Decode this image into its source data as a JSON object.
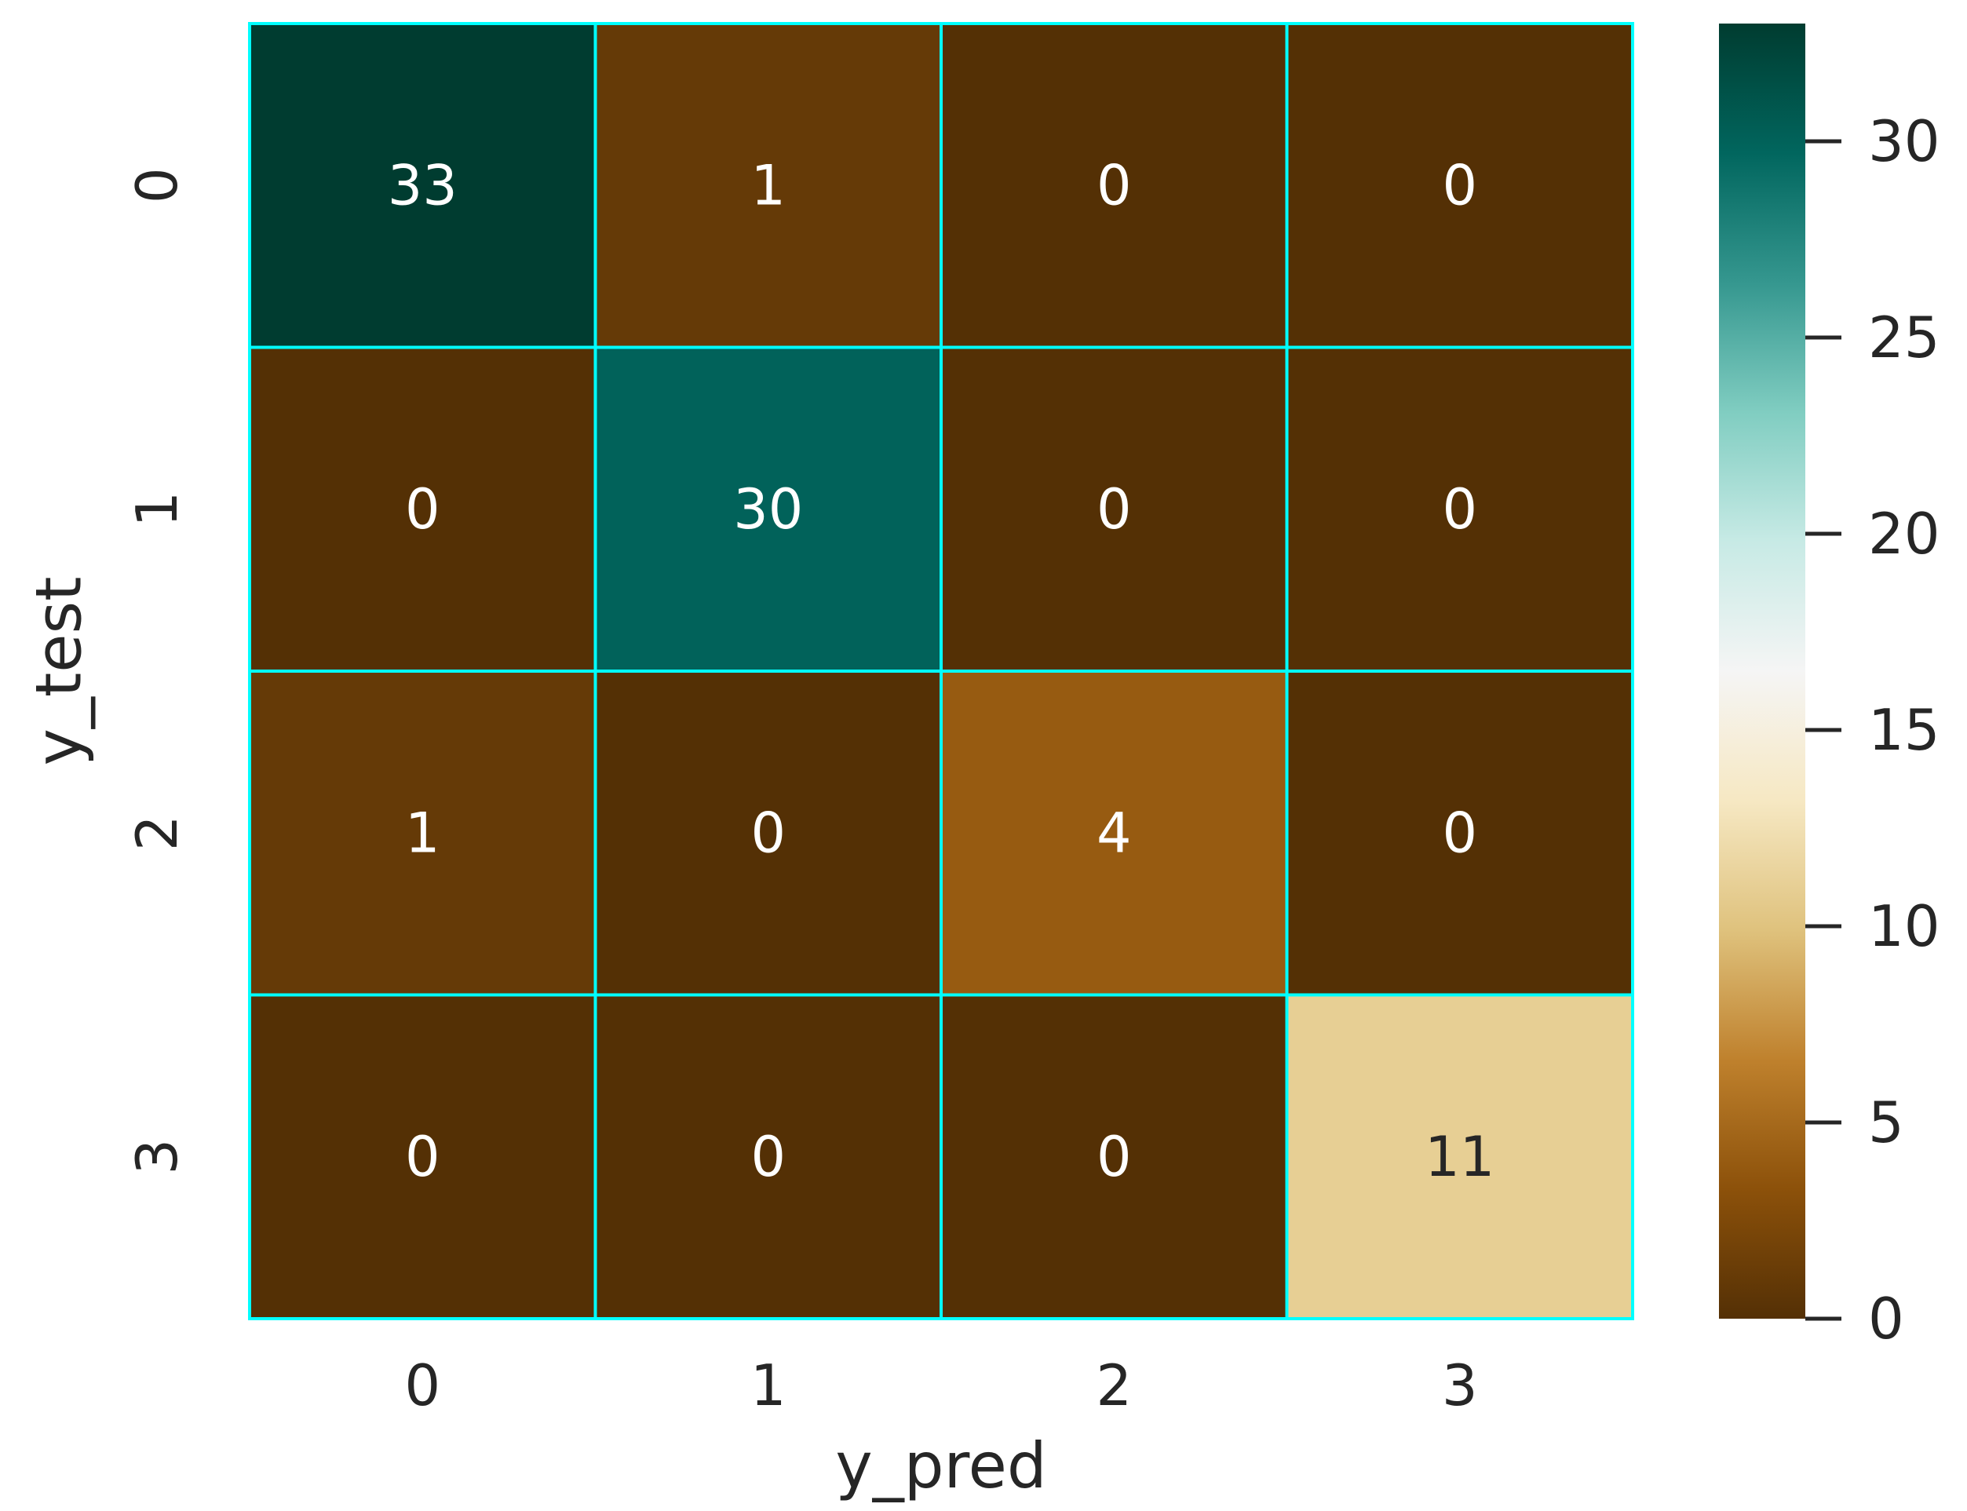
{
  "chart_data": {
    "type": "heatmap",
    "title": "",
    "xlabel": "y_pred",
    "ylabel": "y_test",
    "x_categories": [
      "0",
      "1",
      "2",
      "3"
    ],
    "y_categories": [
      "0",
      "1",
      "2",
      "3"
    ],
    "values": [
      [
        33,
        1,
        0,
        0
      ],
      [
        0,
        30,
        0,
        0
      ],
      [
        1,
        0,
        4,
        0
      ],
      [
        0,
        0,
        0,
        11
      ]
    ],
    "colormap": "BrBG",
    "vmin": 0,
    "vmax": 33,
    "colorbar_ticks": [
      "0",
      "5",
      "10",
      "15",
      "20",
      "25",
      "30"
    ],
    "colorbar_tick_values": [
      0,
      5,
      10,
      15,
      20,
      25,
      30
    ],
    "cell_border_color": "#00ffff",
    "colormap_stops": [
      "#543005",
      "#8c510a",
      "#bf812d",
      "#dfc27d",
      "#f6e8c3",
      "#f5f5f5",
      "#c7eae5",
      "#80cdc1",
      "#35978f",
      "#01665e",
      "#003c30"
    ],
    "annotation_light_color": "#ffffff",
    "annotation_dark_color": "#262626"
  }
}
